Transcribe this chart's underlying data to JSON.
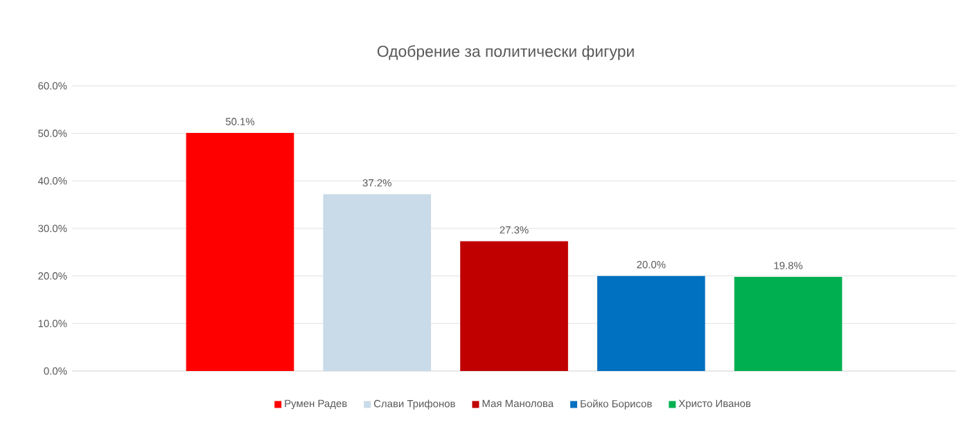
{
  "chart_data": {
    "type": "bar",
    "title": "Одобрение за политически фигури",
    "categories": [
      null
    ],
    "series": [
      {
        "name": "Румен Радев",
        "color": "#ff0000",
        "values": [
          50.1
        ],
        "value_labels": [
          "50.1%"
        ]
      },
      {
        "name": "Слави Трифонов",
        "color": "#c9dbe8",
        "values": [
          37.2
        ],
        "value_labels": [
          "37.2%"
        ]
      },
      {
        "name": "Мая Манолова",
        "color": "#c00000",
        "values": [
          27.3
        ],
        "value_labels": [
          "27.3%"
        ]
      },
      {
        "name": "Бойко Борисов",
        "color": "#0070c0",
        "values": [
          20.0
        ],
        "value_labels": [
          "20.0%"
        ]
      },
      {
        "name": "Христо Иванов",
        "color": "#00b050",
        "values": [
          19.8
        ],
        "value_labels": [
          "19.8%"
        ]
      }
    ],
    "ylim": [
      0,
      60
    ],
    "yticks": [
      {
        "value": 0,
        "label": "0.0%"
      },
      {
        "value": 10,
        "label": "10.0%"
      },
      {
        "value": 20,
        "label": "20.0%"
      },
      {
        "value": 30,
        "label": "30.0%"
      },
      {
        "value": 40,
        "label": "40.0%"
      },
      {
        "value": 50,
        "label": "50.0%"
      },
      {
        "value": 60,
        "label": "60.0%"
      }
    ],
    "grid": "y",
    "legend": "bottom"
  }
}
